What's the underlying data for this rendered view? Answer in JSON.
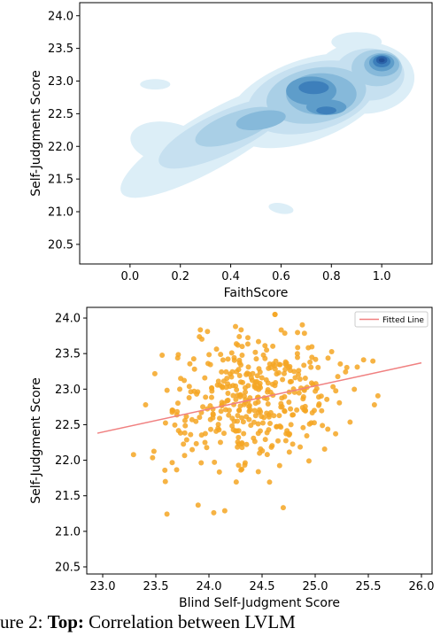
{
  "chart_data": [
    {
      "type": "kde-contour",
      "xlabel": "FaithScore",
      "ylabel": "Self-Judgment Score",
      "xlim": [
        -0.2,
        1.2
      ],
      "ylim": [
        20.2,
        24.2
      ],
      "xticks": [
        "0.0",
        "0.2",
        "0.4",
        "0.6",
        "0.8",
        "1.0"
      ],
      "yticks": [
        "20.5",
        "21.0",
        "21.5",
        "22.0",
        "22.5",
        "23.0",
        "23.5",
        "24.0"
      ],
      "colormap": "Blues",
      "density_centers": [
        {
          "x": 1.0,
          "y": 23.3,
          "weight": 1.0
        },
        {
          "x": 0.72,
          "y": 22.9,
          "weight": 0.85
        },
        {
          "x": 0.78,
          "y": 22.55,
          "weight": 0.7
        },
        {
          "x": 0.6,
          "y": 22.7,
          "weight": 0.5
        },
        {
          "x": 0.35,
          "y": 22.55,
          "weight": 0.3
        },
        {
          "x": 0.2,
          "y": 21.9,
          "weight": 0.15
        },
        {
          "x": 0.08,
          "y": 23.0,
          "weight": 0.1
        },
        {
          "x": 0.6,
          "y": 21.05,
          "weight": 0.08
        }
      ]
    },
    {
      "type": "scatter",
      "xlabel": "Blind Self-Judgment Score",
      "ylabel": "Self-Judgment Score",
      "xlim": [
        22.85,
        26.1
      ],
      "ylim": [
        20.4,
        24.15
      ],
      "xticks": [
        "23.0",
        "23.5",
        "24.0",
        "24.5",
        "25.0",
        "25.5",
        "26.0"
      ],
      "yticks": [
        "20.5",
        "21.0",
        "21.5",
        "22.0",
        "22.5",
        "23.0",
        "23.5",
        "24.0"
      ],
      "point_color": "#f5a623",
      "n_points": 400,
      "points_center": {
        "x": 24.4,
        "y": 22.85
      },
      "points_spread": {
        "x": 0.42,
        "y": 0.48
      },
      "fitted_line": {
        "name": "Fitted Line",
        "color": "#f08080",
        "x": [
          22.95,
          26.0
        ],
        "y": [
          22.38,
          23.37
        ]
      },
      "legend_position": "top-right"
    }
  ],
  "caption": {
    "prefix": "ure 2:",
    "bold": "Top:",
    "text": "Correlation between LVLM"
  }
}
